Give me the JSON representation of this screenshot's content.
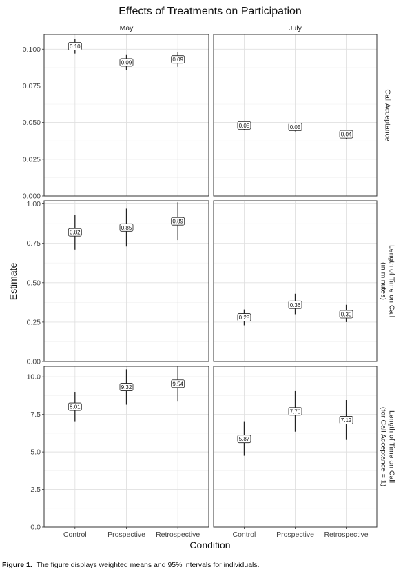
{
  "chart_data": {
    "type": "scatter",
    "title": "Effects of Treatments on Participation",
    "xlabel": "Condition",
    "ylabel": "Estimate",
    "categories": [
      "Control",
      "Prospective",
      "Retrospective"
    ],
    "columns": [
      "May",
      "July"
    ],
    "grid": true,
    "facets": [
      {
        "row_label": "Call Acceptance",
        "ylim": [
          0,
          0.11
        ],
        "yticks": [
          0.0,
          0.025,
          0.05,
          0.075,
          0.1
        ],
        "ytick_labels": [
          "0.000",
          "0.025",
          "0.050",
          "0.075",
          "0.100"
        ],
        "panels": [
          {
            "column": "May",
            "points": [
              {
                "x": "Control",
                "y": 0.102,
                "lo": 0.097,
                "hi": 0.107,
                "label": "0.10"
              },
              {
                "x": "Prospective",
                "y": 0.091,
                "lo": 0.086,
                "hi": 0.096,
                "label": "0.09"
              },
              {
                "x": "Retrospective",
                "y": 0.093,
                "lo": 0.088,
                "hi": 0.098,
                "label": "0.09"
              }
            ]
          },
          {
            "column": "July",
            "points": [
              {
                "x": "Control",
                "y": 0.048,
                "lo": 0.045,
                "hi": 0.051,
                "label": "0.05"
              },
              {
                "x": "Prospective",
                "y": 0.047,
                "lo": 0.044,
                "hi": 0.05,
                "label": "0.05"
              },
              {
                "x": "Retrospective",
                "y": 0.042,
                "lo": 0.039,
                "hi": 0.045,
                "label": "0.04"
              }
            ]
          }
        ]
      },
      {
        "row_label": "Length of Time on Call\n(in minutes)",
        "ylim": [
          0,
          1.02
        ],
        "yticks": [
          0.0,
          0.25,
          0.5,
          0.75,
          1.0
        ],
        "ytick_labels": [
          "0.00",
          "0.25",
          "0.50",
          "0.75",
          "1.00"
        ],
        "panels": [
          {
            "column": "May",
            "points": [
              {
                "x": "Control",
                "y": 0.82,
                "lo": 0.71,
                "hi": 0.93,
                "label": "0.82"
              },
              {
                "x": "Prospective",
                "y": 0.85,
                "lo": 0.73,
                "hi": 0.97,
                "label": "0.85"
              },
              {
                "x": "Retrospective",
                "y": 0.89,
                "lo": 0.77,
                "hi": 1.01,
                "label": "0.89"
              }
            ]
          },
          {
            "column": "July",
            "points": [
              {
                "x": "Control",
                "y": 0.28,
                "lo": 0.23,
                "hi": 0.33,
                "label": "0.28"
              },
              {
                "x": "Prospective",
                "y": 0.36,
                "lo": 0.3,
                "hi": 0.43,
                "label": "0.36"
              },
              {
                "x": "Retrospective",
                "y": 0.3,
                "lo": 0.25,
                "hi": 0.36,
                "label": "0.30"
              }
            ]
          }
        ]
      },
      {
        "row_label": "Length of Time on Call\n(for Call Acceptance = 1)",
        "ylim": [
          0,
          10.7
        ],
        "yticks": [
          0.0,
          2.5,
          5.0,
          7.5,
          10.0
        ],
        "ytick_labels": [
          "0.0",
          "2.5",
          "5.0",
          "7.5",
          "10.0"
        ],
        "panels": [
          {
            "column": "May",
            "points": [
              {
                "x": "Control",
                "y": 8.01,
                "lo": 7.0,
                "hi": 9.0,
                "label": "8.01"
              },
              {
                "x": "Prospective",
                "y": 9.32,
                "lo": 8.15,
                "hi": 10.5,
                "label": "9.32"
              },
              {
                "x": "Retrospective",
                "y": 9.54,
                "lo": 8.35,
                "hi": 10.7,
                "label": "9.54"
              }
            ]
          },
          {
            "column": "July",
            "points": [
              {
                "x": "Control",
                "y": 5.87,
                "lo": 4.75,
                "hi": 7.0,
                "label": "5.87"
              },
              {
                "x": "Prospective",
                "y": 7.7,
                "lo": 6.35,
                "hi": 9.05,
                "label": "7.70"
              },
              {
                "x": "Retrospective",
                "y": 7.12,
                "lo": 5.8,
                "hi": 8.45,
                "label": "7.12"
              }
            ]
          }
        ]
      }
    ]
  },
  "caption": {
    "prefix": "Figure 1.",
    "text": "The figure displays weighted means and 95% intervals for individuals."
  }
}
